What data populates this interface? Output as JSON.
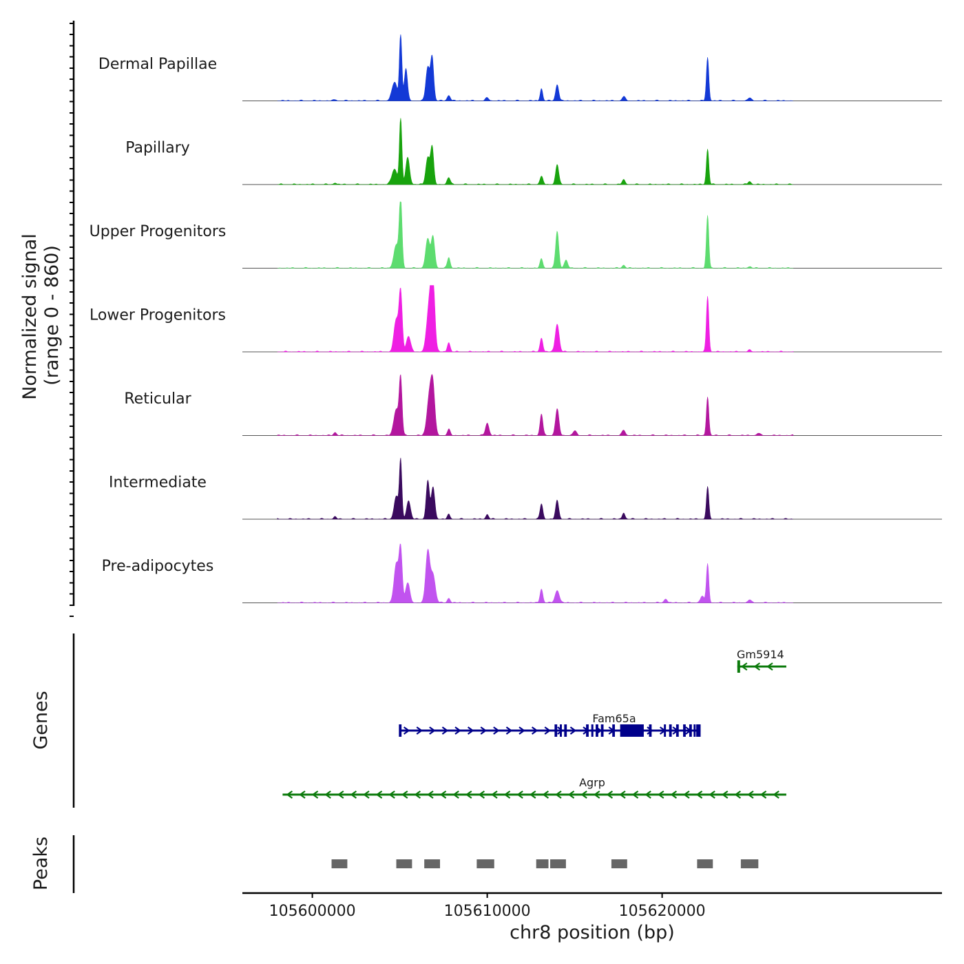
{
  "chart_data": {
    "type": "area",
    "title": "",
    "chromosome": "chr8",
    "xlabel": "chr8 position (bp)",
    "xlim": [
      105596000,
      105636000
    ],
    "x_ticks": [
      105600000,
      105610000,
      105620000
    ],
    "x_tick_labels": [
      "105600000",
      "105610000",
      "105620000"
    ],
    "signal_ylabel": "Normalized signal",
    "signal_range_label": "(range 0 - 860)",
    "ylim": [
      0,
      860
    ],
    "genes_label": "Genes",
    "peaks_label": "Peaks",
    "tracks": [
      {
        "name": "Dermal Papillae",
        "color": "#1339d6",
        "peaks": [
          [
            105605050,
            860,
            70
          ],
          [
            105605350,
            420,
            90
          ],
          [
            105606600,
            430,
            110
          ],
          [
            105606850,
            560,
            90
          ],
          [
            105604700,
            240,
            150
          ],
          [
            105607800,
            70,
            90
          ],
          [
            105610000,
            40,
            90
          ],
          [
            105613100,
            160,
            70
          ],
          [
            105614000,
            210,
            90
          ],
          [
            105617800,
            55,
            90
          ],
          [
            105622600,
            560,
            70
          ],
          [
            105625000,
            40,
            90
          ],
          [
            105601300,
            15,
            80
          ]
        ]
      },
      {
        "name": "Papillary",
        "color": "#18a30d",
        "peaks": [
          [
            105605050,
            860,
            70
          ],
          [
            105605450,
            350,
            110
          ],
          [
            105606600,
            350,
            110
          ],
          [
            105606850,
            480,
            90
          ],
          [
            105604700,
            200,
            150
          ],
          [
            105607800,
            90,
            90
          ],
          [
            105613100,
            100,
            90
          ],
          [
            105614000,
            260,
            90
          ],
          [
            105617800,
            60,
            90
          ],
          [
            105622600,
            460,
            70
          ],
          [
            105625000,
            40,
            90
          ],
          [
            105601300,
            20,
            80
          ]
        ]
      },
      {
        "name": "Upper Progenitors",
        "color": "#5ddc6f",
        "peaks": [
          [
            105605050,
            860,
            80
          ],
          [
            105604800,
            300,
            140
          ],
          [
            105606600,
            380,
            120
          ],
          [
            105606900,
            400,
            100
          ],
          [
            105607800,
            140,
            80
          ],
          [
            105613100,
            120,
            80
          ],
          [
            105614000,
            480,
            90
          ],
          [
            105614500,
            100,
            100
          ],
          [
            105617800,
            40,
            80
          ],
          [
            105622600,
            680,
            70
          ],
          [
            105625000,
            20,
            90
          ]
        ]
      },
      {
        "name": "Lower Progenitors",
        "color": "#ef1fe3",
        "peaks": [
          [
            105605050,
            760,
            90
          ],
          [
            105604800,
            420,
            130
          ],
          [
            105605500,
            200,
            120
          ],
          [
            105606700,
            640,
            150
          ],
          [
            105606900,
            780,
            110
          ],
          [
            105607800,
            120,
            80
          ],
          [
            105613100,
            180,
            80
          ],
          [
            105614000,
            360,
            110
          ],
          [
            105622600,
            720,
            70
          ],
          [
            105625000,
            20,
            90
          ]
        ]
      },
      {
        "name": "Reticular",
        "color": "#b3169e",
        "peaks": [
          [
            105605050,
            720,
            80
          ],
          [
            105604800,
            340,
            140
          ],
          [
            105606700,
            520,
            140
          ],
          [
            105606900,
            550,
            110
          ],
          [
            105607800,
            80,
            80
          ],
          [
            105610000,
            160,
            100
          ],
          [
            105613100,
            280,
            80
          ],
          [
            105614000,
            340,
            100
          ],
          [
            105615000,
            60,
            100
          ],
          [
            105617800,
            70,
            90
          ],
          [
            105622600,
            500,
            70
          ],
          [
            105601300,
            40,
            80
          ],
          [
            105625500,
            30,
            90
          ]
        ]
      },
      {
        "name": "Intermediate",
        "color": "#3a0a5e",
        "peaks": [
          [
            105605050,
            760,
            70
          ],
          [
            105604800,
            300,
            120
          ],
          [
            105605500,
            240,
            110
          ],
          [
            105606600,
            500,
            90
          ],
          [
            105606900,
            420,
            100
          ],
          [
            105607800,
            60,
            80
          ],
          [
            105610000,
            60,
            80
          ],
          [
            105613100,
            200,
            80
          ],
          [
            105614000,
            240,
            90
          ],
          [
            105617800,
            80,
            80
          ],
          [
            105622600,
            420,
            70
          ],
          [
            105601300,
            30,
            80
          ]
        ]
      },
      {
        "name": "Pre-adipocytes",
        "color": "#c153ef",
        "peaks": [
          [
            105605050,
            680,
            90
          ],
          [
            105604800,
            500,
            130
          ],
          [
            105605450,
            260,
            120
          ],
          [
            105606600,
            660,
            120
          ],
          [
            105606900,
            360,
            130
          ],
          [
            105607800,
            60,
            80
          ],
          [
            105613100,
            180,
            80
          ],
          [
            105614000,
            160,
            120
          ],
          [
            105620200,
            50,
            90
          ],
          [
            105622600,
            500,
            70
          ],
          [
            105622300,
            80,
            120
          ],
          [
            105625000,
            40,
            90
          ]
        ]
      }
    ],
    "genes": [
      {
        "name": "Gm5914",
        "strand": "-",
        "color": "#0b7a0b",
        "start": 105624300,
        "end": 105627100
      },
      {
        "name": "Fam65a",
        "strand": "+",
        "color": "#00008b",
        "start": 105605000,
        "end": 105622200
      },
      {
        "name": "Agrp",
        "strand": "-",
        "color": "#0b7a0b",
        "start": 105598300,
        "end": 105627100
      }
    ],
    "peaks": [
      [
        105601100,
        105602000
      ],
      [
        105604800,
        105605700
      ],
      [
        105606400,
        105607300
      ],
      [
        105609400,
        105610400
      ],
      [
        105612800,
        105613500
      ],
      [
        105613600,
        105614500
      ],
      [
        105617100,
        105618000
      ],
      [
        105622000,
        105622900
      ],
      [
        105624500,
        105625500
      ]
    ]
  }
}
